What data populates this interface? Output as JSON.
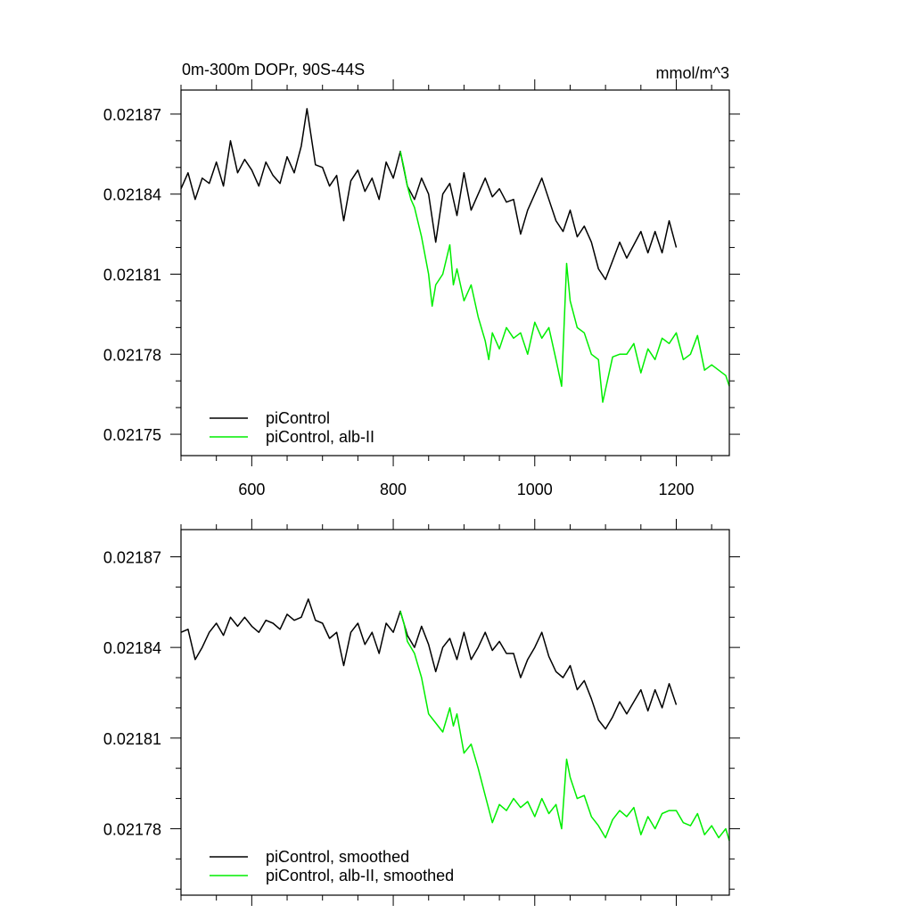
{
  "chart_data": [
    {
      "type": "line",
      "title": "0m-300m DOPr, 90S-44S",
      "units": "mmol/m^3",
      "xlim": [
        500,
        1275
      ],
      "ylim": [
        0.021742,
        0.021879
      ],
      "xticks": [
        600,
        800,
        1000,
        1200
      ],
      "xtick_labels": [
        "600",
        "800",
        "1000",
        "1200"
      ],
      "yticks": [
        0.02175,
        0.02178,
        0.02181,
        0.02184,
        0.02187
      ],
      "ytick_labels": [
        "0.02175",
        "0.02178",
        "0.02181",
        "0.02184",
        "0.02187"
      ],
      "grid": false,
      "legend_position": "bottom-left",
      "series": [
        {
          "name": "piControl",
          "color": "#000000",
          "x": [
            500,
            510,
            520,
            530,
            540,
            550,
            560,
            570,
            580,
            590,
            600,
            610,
            620,
            630,
            640,
            650,
            660,
            670,
            678,
            690,
            700,
            710,
            720,
            730,
            740,
            750,
            760,
            770,
            780,
            790,
            800,
            810,
            820,
            830,
            840,
            850,
            860,
            870,
            880,
            890,
            900,
            910,
            920,
            930,
            940,
            950,
            960,
            970,
            980,
            990,
            1000,
            1010,
            1020,
            1030,
            1040,
            1050,
            1060,
            1070,
            1080,
            1090,
            1100,
            1110,
            1120,
            1130,
            1140,
            1150,
            1160,
            1170,
            1180,
            1190,
            1200
          ],
          "y": [
            0.021842,
            0.021848,
            0.021838,
            0.021846,
            0.021844,
            0.021852,
            0.021843,
            0.02186,
            0.021848,
            0.021853,
            0.021849,
            0.021843,
            0.021852,
            0.021847,
            0.021844,
            0.021854,
            0.021848,
            0.021858,
            0.021872,
            0.021851,
            0.02185,
            0.021843,
            0.021847,
            0.02183,
            0.021845,
            0.021849,
            0.021841,
            0.021846,
            0.021838,
            0.021852,
            0.021846,
            0.021856,
            0.021843,
            0.021838,
            0.021846,
            0.02184,
            0.021822,
            0.02184,
            0.021844,
            0.021832,
            0.021848,
            0.021834,
            0.02184,
            0.021846,
            0.021839,
            0.021842,
            0.021837,
            0.021838,
            0.021825,
            0.021834,
            0.02184,
            0.021846,
            0.021838,
            0.02183,
            0.021826,
            0.021834,
            0.021824,
            0.021828,
            0.021822,
            0.021812,
            0.021808,
            0.021815,
            0.021822,
            0.021816,
            0.021821,
            0.021826,
            0.021818,
            0.021826,
            0.021818,
            0.02183,
            0.02182
          ]
        },
        {
          "name": "piControl, alb-II",
          "color": "#00ee00",
          "x": [
            810,
            815,
            820,
            825,
            830,
            840,
            850,
            855,
            860,
            870,
            880,
            885,
            890,
            900,
            910,
            920,
            930,
            935,
            940,
            950,
            960,
            970,
            980,
            990,
            1000,
            1010,
            1020,
            1030,
            1038,
            1045,
            1050,
            1060,
            1070,
            1080,
            1090,
            1096,
            1110,
            1120,
            1130,
            1140,
            1150,
            1160,
            1170,
            1180,
            1190,
            1200,
            1210,
            1220,
            1230,
            1240,
            1250,
            1260,
            1270,
            1275
          ],
          "y": [
            0.021856,
            0.02185,
            0.021843,
            0.021838,
            0.021835,
            0.021824,
            0.02181,
            0.021798,
            0.021806,
            0.02181,
            0.021821,
            0.021806,
            0.021812,
            0.0218,
            0.021806,
            0.021794,
            0.021785,
            0.021778,
            0.021788,
            0.021782,
            0.02179,
            0.021786,
            0.021788,
            0.02178,
            0.021792,
            0.021786,
            0.02179,
            0.021778,
            0.021768,
            0.021814,
            0.0218,
            0.02179,
            0.021788,
            0.02178,
            0.021778,
            0.021762,
            0.021779,
            0.02178,
            0.02178,
            0.021784,
            0.021773,
            0.021782,
            0.021778,
            0.021786,
            0.021784,
            0.021788,
            0.021778,
            0.02178,
            0.021787,
            0.021774,
            0.021776,
            0.021774,
            0.021772,
            0.021768
          ]
        }
      ]
    },
    {
      "type": "line",
      "xlim": [
        500,
        1275
      ],
      "ylim": [
        0.021758,
        0.021879
      ],
      "xticks": [
        600,
        800,
        1000,
        1200
      ],
      "yticks": [
        0.02178,
        0.02181,
        0.02184,
        0.02187
      ],
      "ytick_labels": [
        "0.02178",
        "0.02181",
        "0.02184",
        "0.02187"
      ],
      "grid": false,
      "legend_position": "bottom-left",
      "series": [
        {
          "name": "piControl, smoothed",
          "color": "#000000",
          "x": [
            500,
            510,
            520,
            530,
            540,
            550,
            560,
            570,
            580,
            590,
            600,
            610,
            620,
            630,
            640,
            650,
            660,
            670,
            680,
            690,
            700,
            710,
            720,
            730,
            740,
            750,
            760,
            770,
            780,
            790,
            800,
            810,
            820,
            830,
            840,
            850,
            860,
            870,
            880,
            890,
            900,
            910,
            920,
            930,
            940,
            950,
            960,
            970,
            980,
            990,
            1000,
            1010,
            1020,
            1030,
            1040,
            1050,
            1060,
            1070,
            1080,
            1090,
            1100,
            1110,
            1120,
            1130,
            1140,
            1150,
            1160,
            1170,
            1180,
            1190,
            1200
          ],
          "y": [
            0.021845,
            0.021846,
            0.021836,
            0.02184,
            0.021845,
            0.021848,
            0.021844,
            0.02185,
            0.021847,
            0.02185,
            0.021847,
            0.021845,
            0.021849,
            0.021848,
            0.021846,
            0.021851,
            0.021849,
            0.02185,
            0.021856,
            0.021849,
            0.021848,
            0.021843,
            0.021845,
            0.021834,
            0.021845,
            0.021848,
            0.021841,
            0.021845,
            0.021838,
            0.021848,
            0.021845,
            0.021852,
            0.021844,
            0.02184,
            0.021847,
            0.021841,
            0.021832,
            0.02184,
            0.021843,
            0.021836,
            0.021845,
            0.021836,
            0.02184,
            0.021845,
            0.021839,
            0.021842,
            0.021838,
            0.021838,
            0.02183,
            0.021836,
            0.02184,
            0.021845,
            0.021837,
            0.021832,
            0.02183,
            0.021834,
            0.021826,
            0.021829,
            0.021823,
            0.021816,
            0.021813,
            0.021817,
            0.021822,
            0.021818,
            0.021822,
            0.021826,
            0.021819,
            0.021826,
            0.02182,
            0.021828,
            0.021821
          ]
        },
        {
          "name": "piControl, alb-II, smoothed",
          "color": "#00ee00",
          "x": [
            810,
            815,
            820,
            830,
            840,
            850,
            860,
            870,
            880,
            885,
            890,
            900,
            910,
            920,
            930,
            940,
            950,
            960,
            970,
            980,
            990,
            1000,
            1010,
            1020,
            1030,
            1038,
            1045,
            1050,
            1060,
            1070,
            1080,
            1090,
            1100,
            1110,
            1120,
            1130,
            1140,
            1150,
            1160,
            1170,
            1180,
            1190,
            1200,
            1210,
            1220,
            1230,
            1240,
            1250,
            1260,
            1270,
            1275
          ],
          "y": [
            0.021852,
            0.021848,
            0.021842,
            0.021838,
            0.02183,
            0.021818,
            0.021815,
            0.021812,
            0.02182,
            0.021814,
            0.021818,
            0.021805,
            0.021808,
            0.0218,
            0.021791,
            0.021782,
            0.021788,
            0.021786,
            0.02179,
            0.021787,
            0.021789,
            0.021784,
            0.02179,
            0.021785,
            0.021788,
            0.02178,
            0.021803,
            0.021797,
            0.02179,
            0.021791,
            0.021784,
            0.021781,
            0.021777,
            0.021783,
            0.021786,
            0.021784,
            0.021787,
            0.021778,
            0.021784,
            0.02178,
            0.021785,
            0.021786,
            0.021786,
            0.021782,
            0.021781,
            0.021785,
            0.021778,
            0.021781,
            0.021777,
            0.02178,
            0.021776
          ]
        }
      ]
    }
  ]
}
